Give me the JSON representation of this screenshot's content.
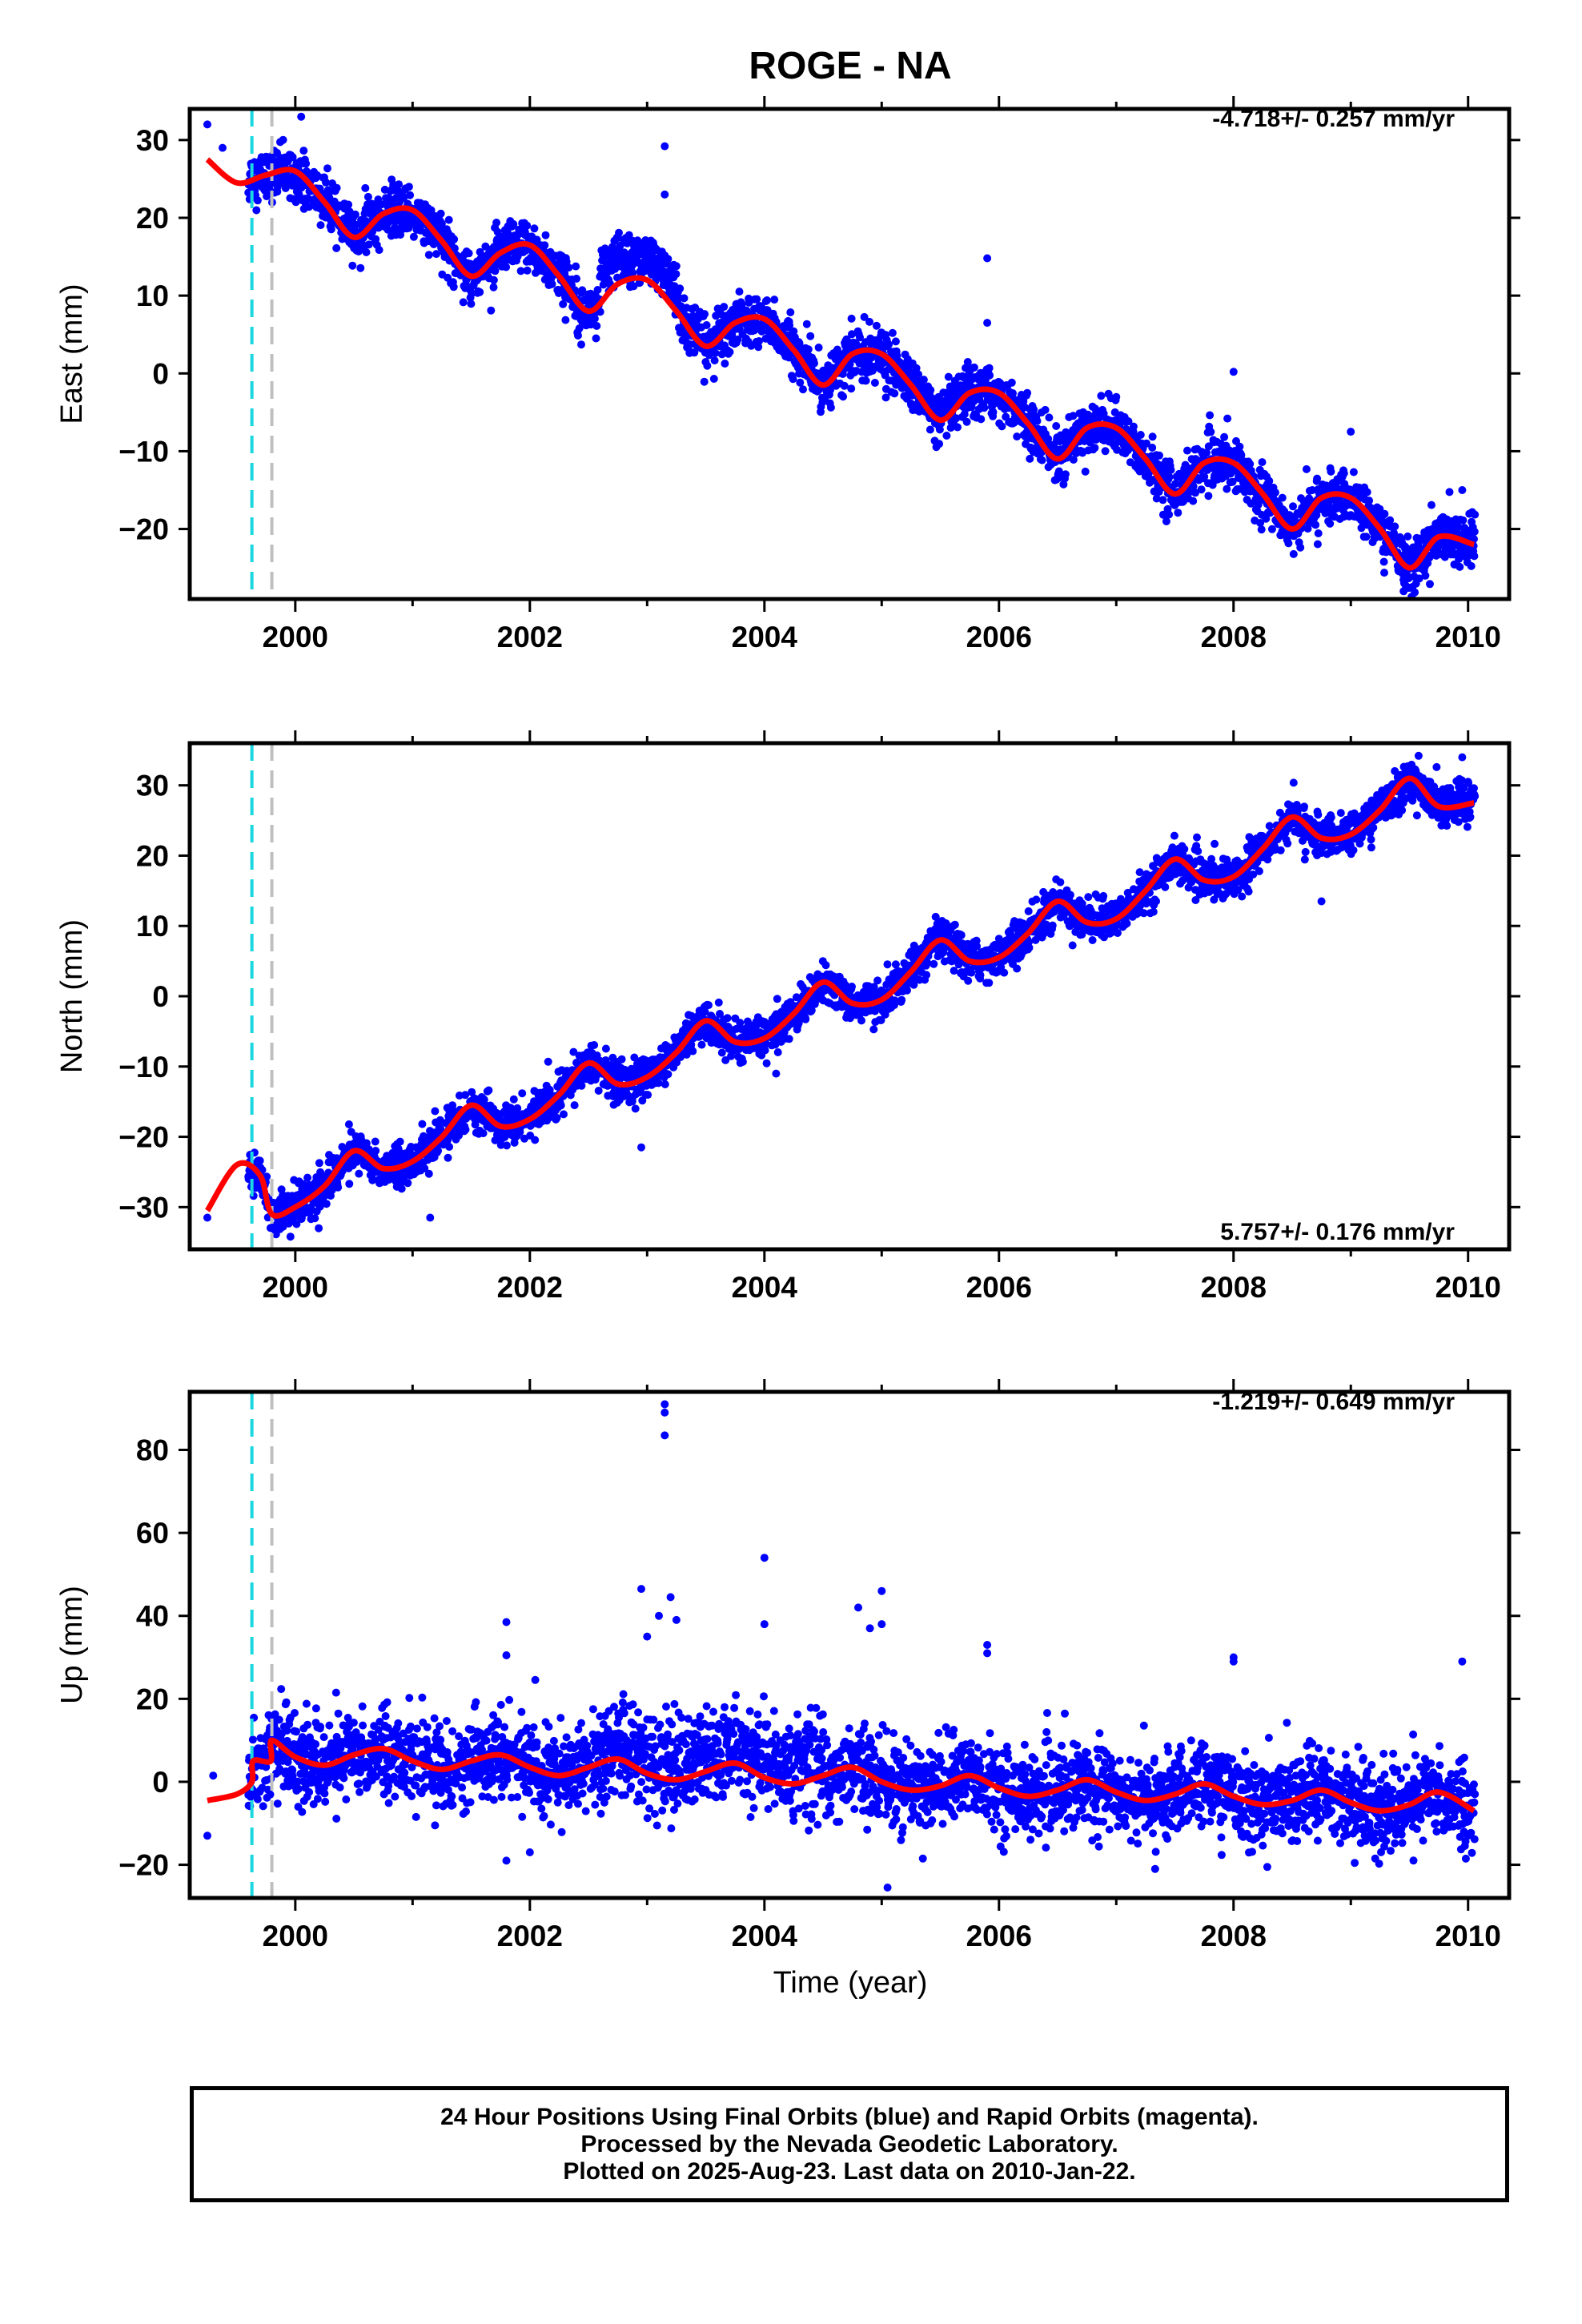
{
  "title": "ROGE - NA",
  "colors": {
    "data": "#0000ff",
    "model": "#ff0000",
    "event_cyan": "#1ad7e0",
    "event_gray": "#bfbfbf"
  },
  "x_axis": {
    "label": "Time (year)",
    "range": [
      1999.1,
      2010.35
    ],
    "tick_values": [
      2000,
      2002,
      2004,
      2006,
      2008,
      2010
    ],
    "tick_labels": [
      "2000",
      "2002",
      "2004",
      "2006",
      "2008",
      "2010"
    ],
    "minor_step": 1
  },
  "event_lines": [
    {
      "x": 1999.63,
      "color": "#1ad7e0",
      "style": "dashed"
    },
    {
      "x": 1999.8,
      "color": "#bfbfbf",
      "style": "dashed"
    }
  ],
  "chart_data": [
    {
      "type": "scatter",
      "name": "east",
      "ylabel": "East (mm)",
      "rate_text": "-4.718+/- 0.257 mm/yr",
      "rate_position": "top-right",
      "ylim": [
        -29,
        34
      ],
      "y_tick_values": [
        -20,
        -10,
        0,
        10,
        20,
        30
      ],
      "y_tick_labels": [
        "−20",
        "−10",
        "0",
        "10",
        "20",
        "30"
      ],
      "trend": {
        "rate": -4.718,
        "intercept_at_1999_25": 27.3
      },
      "seasonal": {
        "amplitude": 2.8,
        "peak_phase": 0.82
      },
      "model_breaks": [
        {
          "x": 1999.63,
          "offset": 1.5
        }
      ],
      "model_x": [
        1999.25,
        1999.5,
        1999.75,
        2000.0,
        2000.25,
        2000.5,
        2000.75,
        2001.0,
        2001.25,
        2001.5,
        2001.75,
        2002.0,
        2002.25,
        2002.5,
        2002.75,
        2003.0,
        2003.25,
        2003.5,
        2003.75,
        2004.0,
        2004.25,
        2004.5,
        2004.75,
        2005.0,
        2005.25,
        2005.5,
        2005.75,
        2006.0,
        2006.25,
        2006.5,
        2006.75,
        2007.0,
        2007.25,
        2007.5,
        2007.75,
        2008.0,
        2008.25,
        2008.5,
        2008.75,
        2009.0,
        2009.25,
        2009.5,
        2009.75,
        2010.05
      ],
      "model_y": [
        27.5,
        24.5,
        25.5,
        26.0,
        22.0,
        17.5,
        20.5,
        21.0,
        17.0,
        12.5,
        15.5,
        16.5,
        12.5,
        8.0,
        11.5,
        12.0,
        8.0,
        3.5,
        6.5,
        7.0,
        3.0,
        -1.5,
        2.5,
        2.5,
        -1.5,
        -6.0,
        -2.5,
        -2.5,
        -6.5,
        -11.0,
        -7.0,
        -7.0,
        -11.0,
        -15.5,
        -11.5,
        -11.5,
        -15.5,
        -20.0,
        -16.0,
        -16.0,
        -20.0,
        -25.0,
        -21.0,
        -22.0
      ],
      "noise_sd": 1.6,
      "outliers": [
        [
          1999.25,
          32.0
        ],
        [
          1999.38,
          29.0
        ],
        [
          2000.05,
          33.0
        ],
        [
          2003.15,
          29.2
        ],
        [
          2003.15,
          23.0
        ],
        [
          2005.9,
          14.8
        ],
        [
          2005.9,
          6.5
        ],
        [
          2008.0,
          0.2
        ],
        [
          2009.0,
          -7.5
        ],
        [
          2009.45,
          -28.0
        ],
        [
          2009.95,
          -15.0
        ]
      ]
    },
    {
      "type": "scatter",
      "name": "north",
      "ylabel": "North (mm)",
      "rate_text": "5.757+/- 0.176 mm/yr",
      "rate_position": "bottom-right",
      "ylim": [
        -36,
        36
      ],
      "y_tick_values": [
        -30,
        -20,
        -10,
        0,
        10,
        20,
        30
      ],
      "y_tick_labels": [
        "−30",
        "−20",
        "−10",
        "0",
        "10",
        "20",
        "30"
      ],
      "model_x": [
        1999.25,
        1999.5,
        1999.7,
        1999.8,
        2000.0,
        2000.25,
        2000.5,
        2000.75,
        2001.0,
        2001.25,
        2001.5,
        2001.75,
        2002.0,
        2002.25,
        2002.5,
        2002.75,
        2003.0,
        2003.25,
        2003.5,
        2003.75,
        2004.0,
        2004.25,
        2004.5,
        2004.75,
        2005.0,
        2005.25,
        2005.5,
        2005.75,
        2006.0,
        2006.25,
        2006.5,
        2006.75,
        2007.0,
        2007.25,
        2007.5,
        2007.75,
        2008.0,
        2008.25,
        2008.5,
        2008.75,
        2009.0,
        2009.25,
        2009.5,
        2009.75,
        2010.05
      ],
      "model_y": [
        -30.5,
        -24.0,
        -25.5,
        -31.0,
        -30.0,
        -27.0,
        -22.0,
        -24.5,
        -23.5,
        -20.0,
        -15.5,
        -18.5,
        -17.5,
        -14.0,
        -9.5,
        -12.5,
        -11.5,
        -8.0,
        -3.5,
        -6.5,
        -6.0,
        -2.5,
        2.0,
        -1.0,
        -0.5,
        3.5,
        8.0,
        5.0,
        5.5,
        9.0,
        13.5,
        10.5,
        11.0,
        15.0,
        19.5,
        16.5,
        17.0,
        21.0,
        25.5,
        22.5,
        23.0,
        26.5,
        31.0,
        27.0,
        27.5
      ],
      "noise_sd": 1.4,
      "outliers": [
        [
          1999.25,
          -31.5
        ],
        [
          2000.2,
          -33.0
        ],
        [
          2001.15,
          -31.5
        ],
        [
          2002.95,
          -21.5
        ],
        [
          2002.9,
          -16.0
        ],
        [
          2004.1,
          -11.0
        ],
        [
          2008.75,
          13.5
        ],
        [
          2009.95,
          34.0
        ],
        [
          2010.0,
          30.5
        ]
      ]
    },
    {
      "type": "scatter",
      "name": "up",
      "ylabel": "Up (mm)",
      "rate_text": "-1.219+/- 0.649 mm/yr",
      "rate_position": "top-right",
      "ylim": [
        -28,
        94
      ],
      "y_tick_values": [
        -20,
        0,
        20,
        40,
        60,
        80
      ],
      "y_tick_labels": [
        "−20",
        "0",
        "20",
        "40",
        "60",
        "80"
      ],
      "model_x": [
        1999.25,
        1999.5,
        1999.63,
        1999.64,
        1999.79,
        1999.8,
        2000.0,
        2000.25,
        2000.5,
        2000.75,
        2001.0,
        2001.25,
        2001.5,
        2001.75,
        2002.0,
        2002.25,
        2002.5,
        2002.75,
        2003.0,
        2003.25,
        2003.5,
        2003.75,
        2004.0,
        2004.25,
        2004.5,
        2004.75,
        2005.0,
        2005.25,
        2005.5,
        2005.75,
        2006.0,
        2006.25,
        2006.5,
        2006.75,
        2007.0,
        2007.25,
        2007.5,
        2007.75,
        2008.0,
        2008.25,
        2008.5,
        2008.75,
        2009.0,
        2009.25,
        2009.5,
        2009.75,
        2010.05
      ],
      "model_y": [
        -4.5,
        -3.0,
        0.0,
        5.0,
        5.0,
        10.0,
        6.0,
        4.0,
        6.5,
        8.0,
        5.0,
        3.0,
        5.0,
        6.5,
        3.5,
        1.5,
        3.5,
        5.5,
        2.0,
        0.5,
        2.5,
        4.5,
        1.0,
        -0.5,
        1.5,
        3.5,
        0.0,
        -2.0,
        -1.0,
        1.5,
        -1.5,
        -3.5,
        -2.0,
        0.5,
        -2.5,
        -4.5,
        -3.0,
        -0.5,
        -3.5,
        -5.5,
        -4.5,
        -2.0,
        -5.0,
        -7.0,
        -5.5,
        -2.5,
        -7.0
      ],
      "noise_sd": 5.0,
      "outliers": [
        [
          1999.25,
          -13.0
        ],
        [
          1999.3,
          1.5
        ],
        [
          2002.95,
          46.5
        ],
        [
          2003.1,
          40.0
        ],
        [
          2003.15,
          91.0
        ],
        [
          2003.15,
          89.0
        ],
        [
          2003.15,
          83.5
        ],
        [
          2003.2,
          44.5
        ],
        [
          2003.25,
          39.0
        ],
        [
          2003.0,
          35.0
        ],
        [
          2004.0,
          54.0
        ],
        [
          2004.0,
          38.0
        ],
        [
          2001.8,
          38.5
        ],
        [
          2001.8,
          30.5
        ],
        [
          2001.8,
          -19.0
        ],
        [
          2002.0,
          -17.0
        ],
        [
          2004.8,
          42.0
        ],
        [
          2004.9,
          37.0
        ],
        [
          2005.0,
          46.0
        ],
        [
          2005.0,
          38.0
        ],
        [
          2005.05,
          -25.5
        ],
        [
          2005.9,
          33.0
        ],
        [
          2005.9,
          31.0
        ],
        [
          2008.0,
          30.0
        ],
        [
          2008.0,
          29.0
        ],
        [
          2009.95,
          29.0
        ]
      ]
    }
  ],
  "footer": {
    "line1": "24 Hour Positions Using Final Orbits (blue) and Rapid Orbits (magenta).",
    "line2": "Processed by the Nevada Geodetic Laboratory.",
    "line3": "Plotted on 2025-Aug-23. Last data on 2010-Jan-22."
  }
}
